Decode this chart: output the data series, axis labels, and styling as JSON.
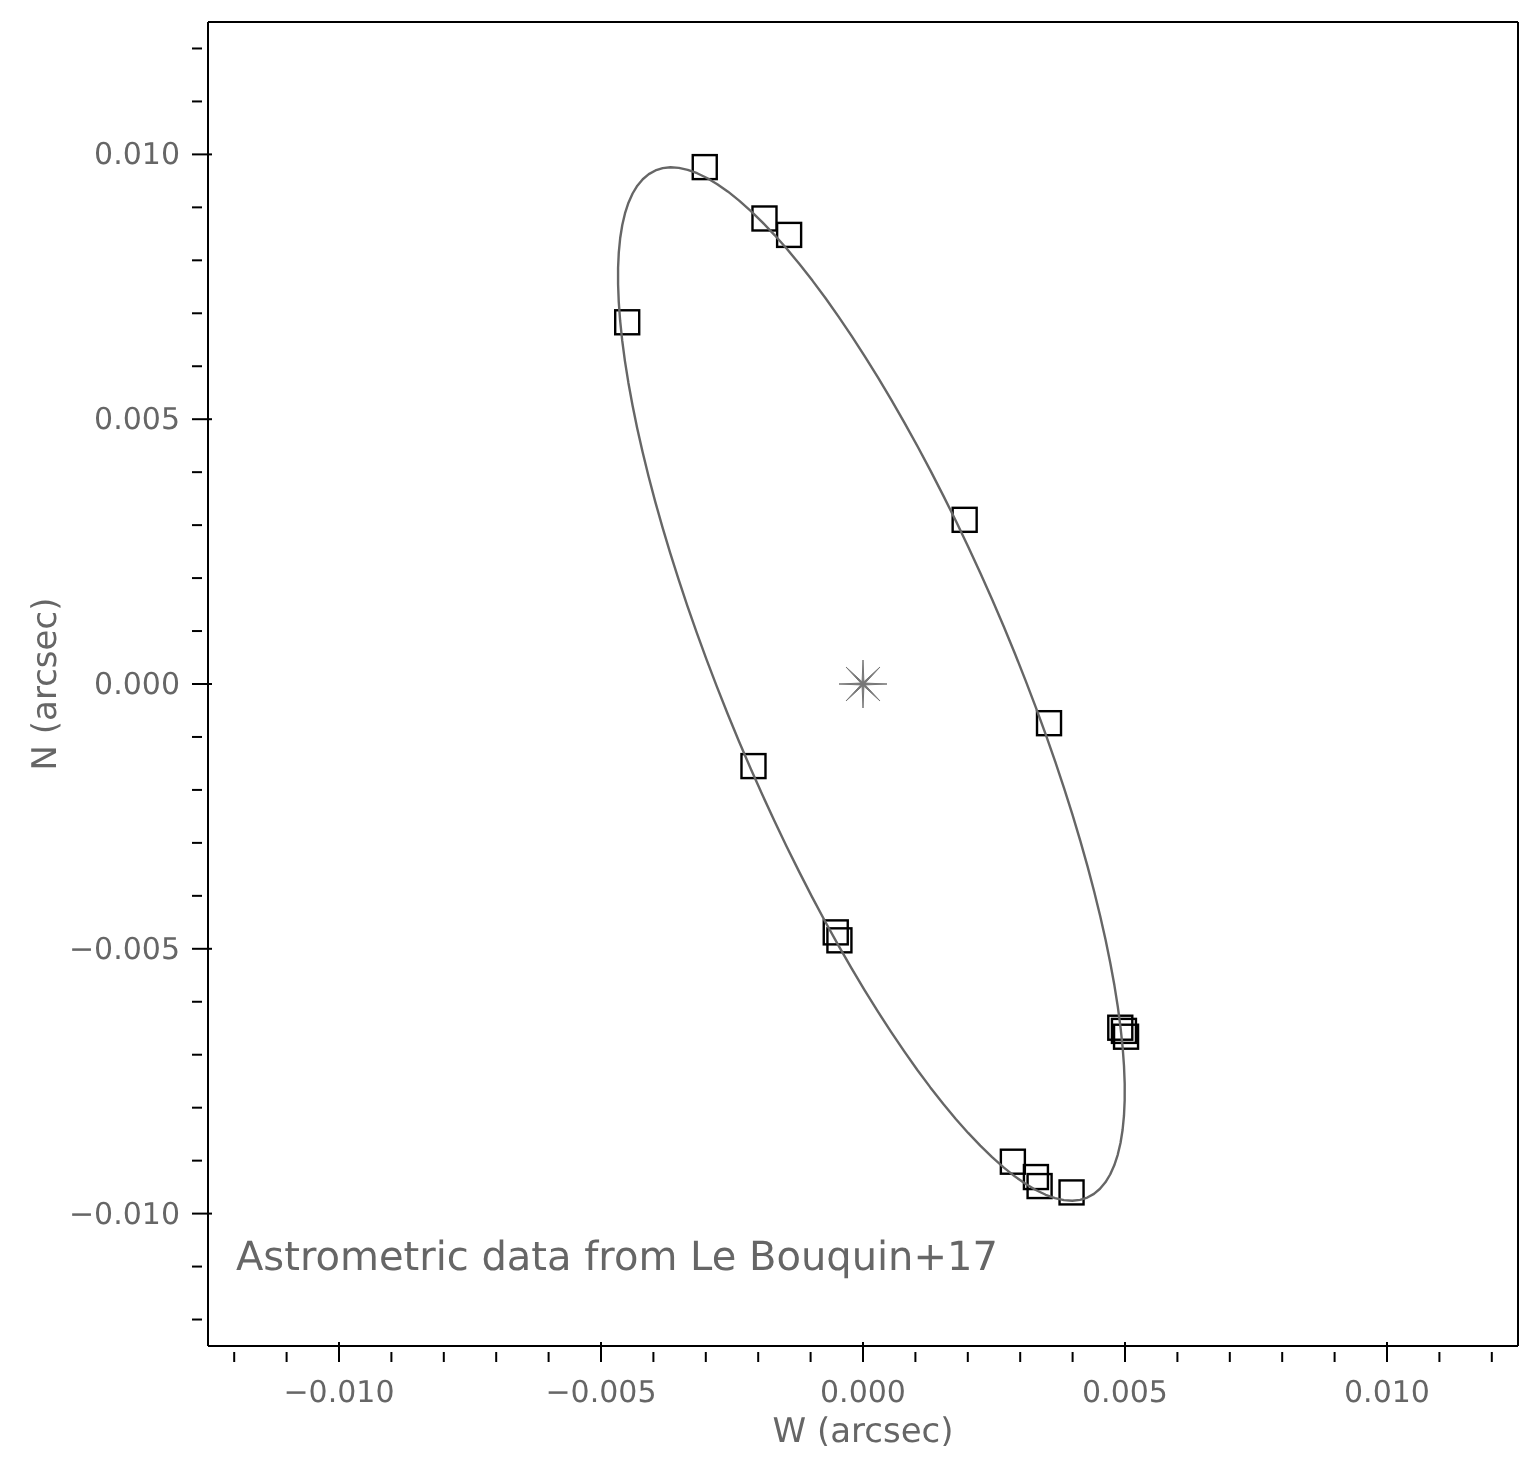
{
  "chart_data": {
    "type": "scatter",
    "xlabel": "W (arcsec)",
    "ylabel": "N (arcsec)",
    "annotations": [
      "Astrometric data from Le Bouquin+17"
    ],
    "xlim": [
      -0.0125,
      0.0125
    ],
    "ylim": [
      -0.0125,
      0.0125
    ],
    "xticks": [
      {
        "value": -0.012,
        "label": null
      },
      {
        "value": -0.011,
        "label": null
      },
      {
        "value": -0.01,
        "label": "−0.010"
      },
      {
        "value": -0.009,
        "label": null
      },
      {
        "value": -0.008,
        "label": null
      },
      {
        "value": -0.007,
        "label": null
      },
      {
        "value": -0.006,
        "label": null
      },
      {
        "value": -0.005,
        "label": "−0.005"
      },
      {
        "value": -0.004,
        "label": null
      },
      {
        "value": -0.003,
        "label": null
      },
      {
        "value": -0.002,
        "label": null
      },
      {
        "value": -0.001,
        "label": null
      },
      {
        "value": 0,
        "label": "0.000"
      },
      {
        "value": 0.001,
        "label": null
      },
      {
        "value": 0.002,
        "label": null
      },
      {
        "value": 0.003,
        "label": null
      },
      {
        "value": 0.004,
        "label": null
      },
      {
        "value": 0.005,
        "label": "0.005"
      },
      {
        "value": 0.006,
        "label": null
      },
      {
        "value": 0.007,
        "label": null
      },
      {
        "value": 0.008,
        "label": null
      },
      {
        "value": 0.009,
        "label": null
      },
      {
        "value": 0.01,
        "label": "0.010"
      },
      {
        "value": 0.011,
        "label": null
      },
      {
        "value": 0.012,
        "label": null
      }
    ],
    "yticks": [
      {
        "value": -0.012,
        "label": null
      },
      {
        "value": -0.011,
        "label": null
      },
      {
        "value": -0.01,
        "label": "−0.010"
      },
      {
        "value": -0.009,
        "label": null
      },
      {
        "value": -0.008,
        "label": null
      },
      {
        "value": -0.007,
        "label": null
      },
      {
        "value": -0.006,
        "label": null
      },
      {
        "value": -0.005,
        "label": "−0.005"
      },
      {
        "value": -0.004,
        "label": null
      },
      {
        "value": -0.003,
        "label": null
      },
      {
        "value": -0.002,
        "label": null
      },
      {
        "value": -0.001,
        "label": null
      },
      {
        "value": 0,
        "label": "0.000"
      },
      {
        "value": 0.001,
        "label": null
      },
      {
        "value": 0.002,
        "label": null
      },
      {
        "value": 0.003,
        "label": null
      },
      {
        "value": 0.004,
        "label": null
      },
      {
        "value": 0.005,
        "label": "0.005"
      },
      {
        "value": 0.006,
        "label": null
      },
      {
        "value": 0.007,
        "label": null
      },
      {
        "value": 0.008,
        "label": null
      },
      {
        "value": 0.009,
        "label": null
      },
      {
        "value": 0.01,
        "label": "0.010"
      },
      {
        "value": 0.011,
        "label": null
      },
      {
        "value": 0.012,
        "label": null
      }
    ],
    "series": [
      {
        "marker": "square",
        "color": "#000000",
        "x": [
          -0.00302,
          -0.00188,
          -0.00141,
          -0.0045,
          0.00194,
          0.00355,
          -0.00209,
          -0.00052,
          -0.00045,
          0.00491,
          0.00498,
          0.00502,
          0.00286,
          0.0033,
          0.00337,
          0.00398
        ],
        "values": [
          0.00976,
          0.00879,
          0.00848,
          0.00683,
          0.0031,
          -0.00074,
          -0.00155,
          -0.00469,
          -0.00484,
          -0.00649,
          -0.00655,
          -0.00666,
          -0.00902,
          -0.00931,
          -0.00948,
          -0.0096
        ]
      },
      {
        "marker": "star",
        "color": "#777777",
        "x": [
          0
        ],
        "values": [
          0
        ]
      }
    ]
  }
}
